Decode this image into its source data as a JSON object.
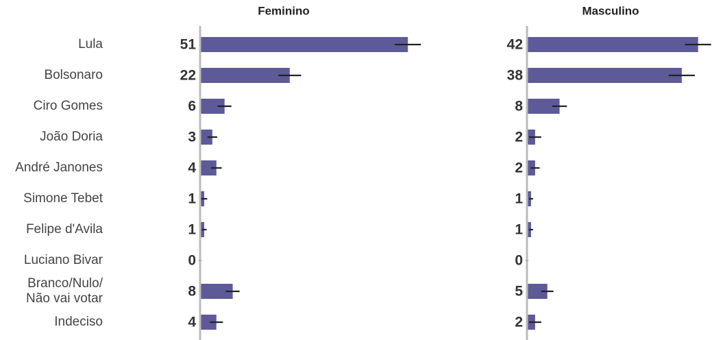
{
  "chart_data": {
    "type": "bar",
    "orientation": "horizontal",
    "categories": [
      "Lula",
      "Bolsonaro",
      "Ciro Gomes",
      "João Doria",
      "André Janones",
      "Simone Tebet",
      "Felipe d'Avila",
      "Luciano Bivar",
      "Branco/Nulo/\nNão vai votar",
      "Indeciso"
    ],
    "series": [
      {
        "name": "Feminino",
        "color": "#5e5a99",
        "values": [
          51,
          22,
          6,
          3,
          4,
          1,
          1,
          0,
          8,
          4
        ],
        "errors": [
          3.2,
          2.8,
          1.7,
          1.2,
          1.3,
          0.75,
          0.6,
          0.3,
          1.7,
          1.6
        ]
      },
      {
        "name": "Masculino",
        "color": "#5e5a99",
        "values": [
          42,
          38,
          8,
          2,
          2,
          1,
          1,
          0,
          5,
          2
        ],
        "errors": [
          3.2,
          3.2,
          1.8,
          1.5,
          1.1,
          0.5,
          0.5,
          0.3,
          1.5,
          1.5
        ]
      }
    ],
    "xlim": [
      0,
      55
    ]
  }
}
